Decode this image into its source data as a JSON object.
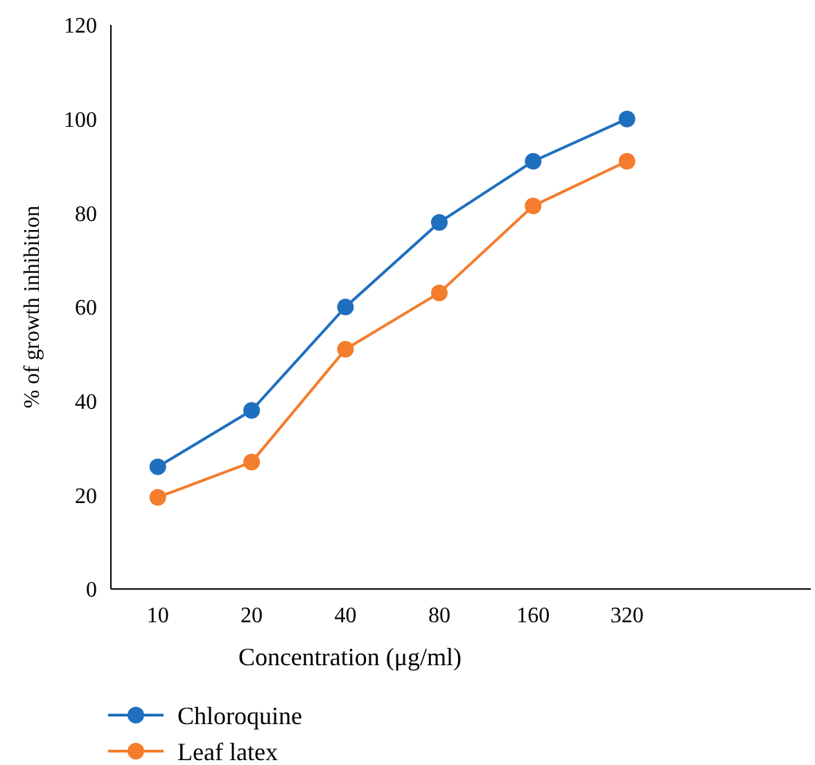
{
  "chart_data": {
    "type": "line",
    "xlabel": "Concentration (μg/ml)",
    "ylabel": "% of growth inhibition",
    "categories": [
      "10",
      "20",
      "40",
      "80",
      "160",
      "320"
    ],
    "series": [
      {
        "name": "Chloroquine",
        "color": "#1f6fbf",
        "values": [
          26,
          38,
          60,
          78,
          91,
          100
        ]
      },
      {
        "name": "Leaf latex",
        "color": "#f47c2c",
        "values": [
          19.5,
          27,
          51,
          63,
          81.5,
          91
        ]
      }
    ],
    "ylim": [
      0,
      120
    ],
    "yticks": [
      0,
      20,
      40,
      60,
      80,
      100,
      120
    ],
    "grid": false,
    "legend": "bottom left",
    "marker": "circle",
    "line_style": "solid"
  }
}
